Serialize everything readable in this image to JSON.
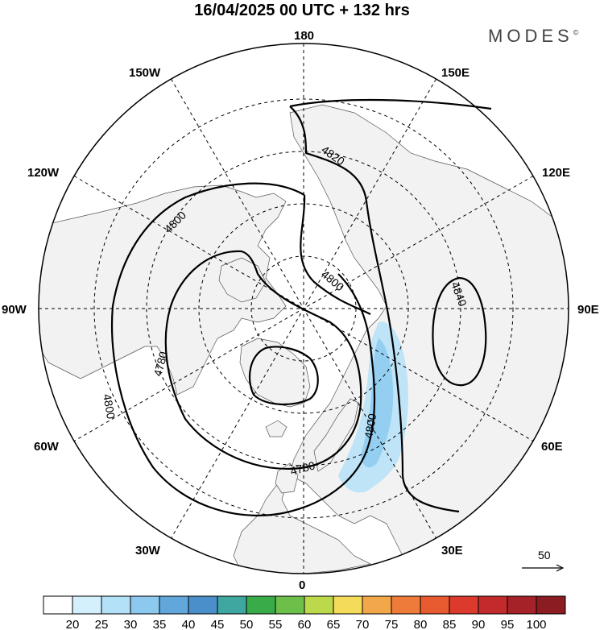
{
  "title": "16/04/2025  00 UTC  + 132 hrs",
  "brand": "MODES",
  "brand_mark": "©",
  "longitude_labels": {
    "top": "180",
    "bottom": "0",
    "left": "90W",
    "right": "90E",
    "upper_left_1": "150W",
    "upper_left_2": "120W",
    "lower_left_1": "60W",
    "lower_left_2": "30W",
    "upper_right_1": "150E",
    "upper_right_2": "120E",
    "lower_right_1": "60E",
    "lower_right_2": "30E"
  },
  "contour_labels": [
    "4820",
    "4800",
    "4800",
    "4800",
    "4780",
    "4780",
    "4800",
    "4840",
    "4800"
  ],
  "vector_reference": "50",
  "colorbar": {
    "ticks": [
      "20",
      "25",
      "30",
      "35",
      "40",
      "45",
      "50",
      "55",
      "60",
      "65",
      "70",
      "75",
      "80",
      "85",
      "90",
      "95",
      "100"
    ],
    "colors": [
      "#ffffff",
      "#d4f0fc",
      "#b3e1f7",
      "#8dc9ee",
      "#62a7dc",
      "#4a8fca",
      "#40a6a0",
      "#3aab49",
      "#6cc04a",
      "#bcd84b",
      "#f4dc5a",
      "#f2a84a",
      "#ef7b3a",
      "#e85a30",
      "#db3a2c",
      "#c32a2b",
      "#a52228",
      "#8a1c22"
    ]
  },
  "colors": {
    "land": "#f2f2f2",
    "ocean": "#ffffff",
    "contour": "#000000",
    "shading": "#9ed2f0"
  }
}
